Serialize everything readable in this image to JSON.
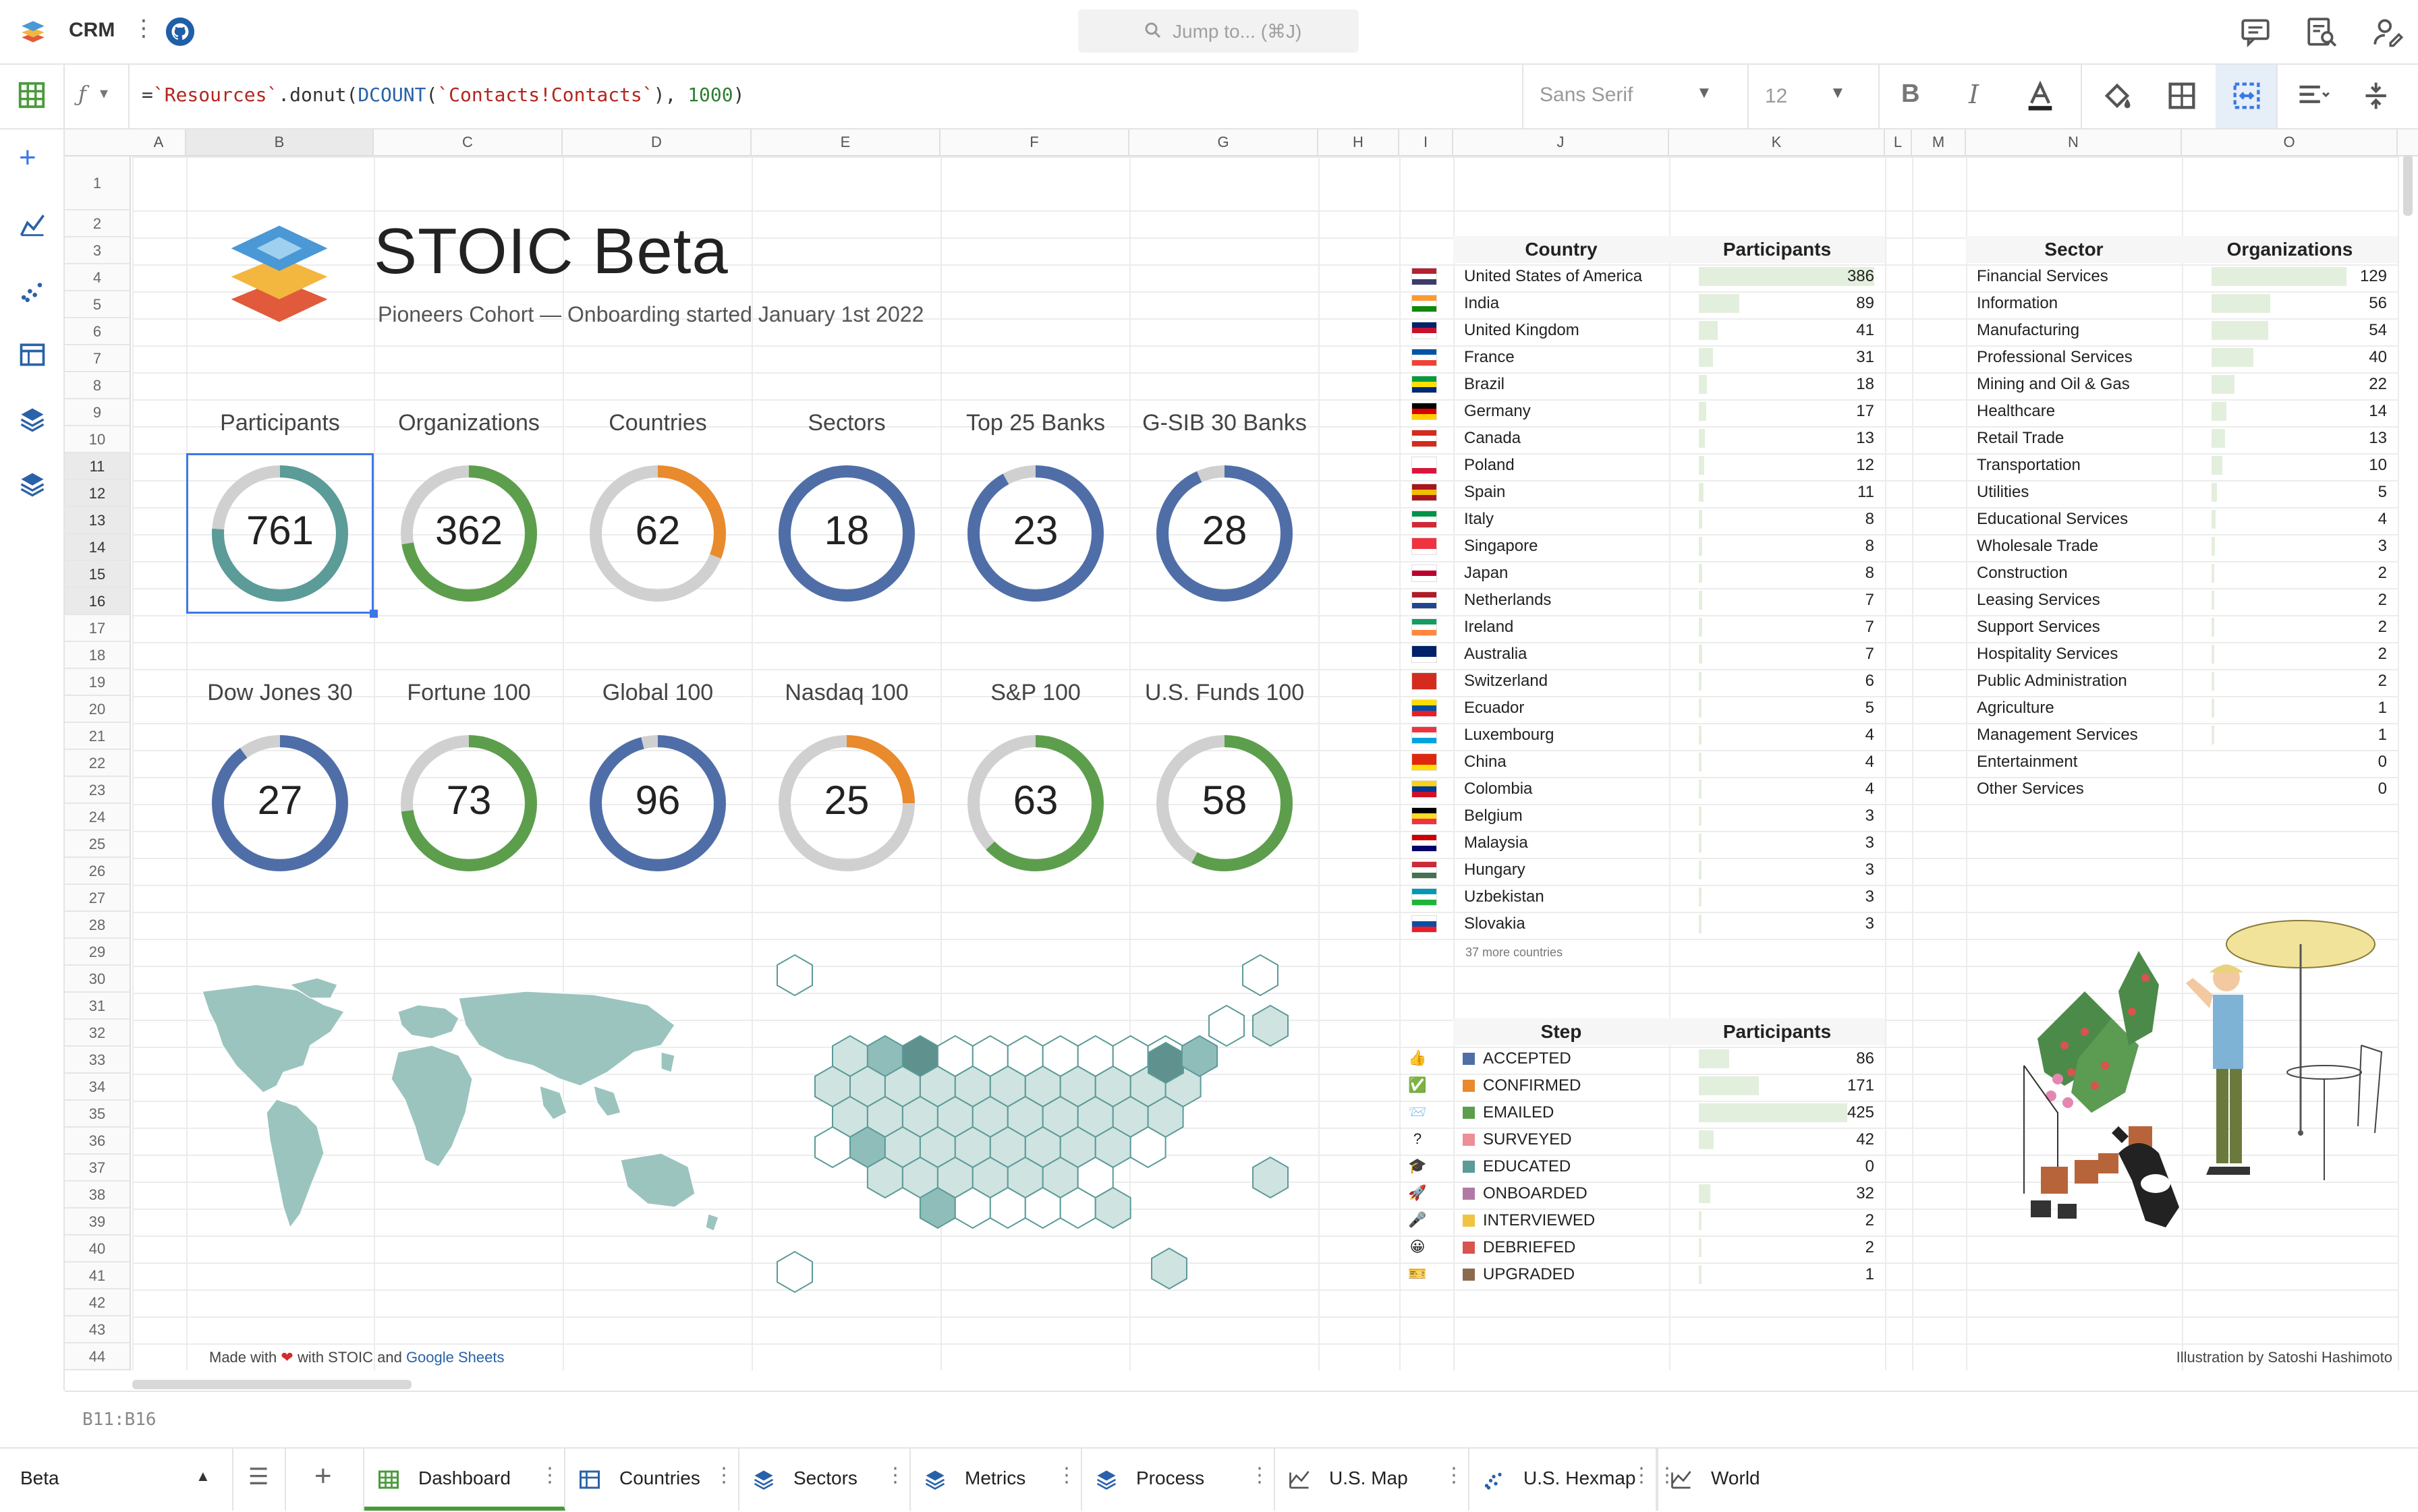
{
  "app": {
    "title": "CRM",
    "search_placeholder": "Jump to... (⌘J)",
    "formula": {
      "pre": "=",
      "s1": "`Resources`",
      "mid": ".donut(",
      "fn": "DCOUNT",
      "p": "(",
      "s2": "`Contacts!Contacts`",
      "c": "), ",
      "num": "1000",
      "end": ")"
    },
    "font_name": "Sans Serif",
    "font_size": "12"
  },
  "columns": [
    "A",
    "B",
    "C",
    "D",
    "E",
    "F",
    "G",
    "H",
    "I",
    "J",
    "K",
    "L",
    "M",
    "N",
    "O"
  ],
  "rows": [
    "1",
    "2",
    "3",
    "4",
    "5",
    "6",
    "7",
    "8",
    "9",
    "10",
    "11",
    "12",
    "13",
    "14",
    "15",
    "16",
    "17",
    "18",
    "19",
    "20",
    "21",
    "22",
    "23",
    "24",
    "25",
    "26",
    "27",
    "28",
    "29",
    "30",
    "31",
    "32",
    "33",
    "34",
    "35",
    "36",
    "37",
    "38",
    "39",
    "40",
    "41",
    "42",
    "43",
    "44"
  ],
  "dashboard": {
    "title": "STOIC Beta",
    "subtitle": "Pioneers Cohort — Onboarding started January 1st 2022",
    "tiles": [
      {
        "label": "Participants",
        "value": "761",
        "fraction": 0.761,
        "color": "#5b9b98"
      },
      {
        "label": "Organizations",
        "value": "362",
        "fraction": 0.724,
        "color": "#5c9e4c"
      },
      {
        "label": "Countries",
        "value": "62",
        "fraction": 0.31,
        "color": "#e98a2c"
      },
      {
        "label": "Sectors",
        "value": "18",
        "fraction": 1.0,
        "color": "#4f6ea8"
      },
      {
        "label": "Top 25 Banks",
        "value": "23",
        "fraction": 0.92,
        "color": "#4f6ea8"
      },
      {
        "label": "G-SIB 30 Banks",
        "value": "28",
        "fraction": 0.933,
        "color": "#4f6ea8"
      },
      {
        "label": "Dow Jones 30",
        "value": "27",
        "fraction": 0.9,
        "color": "#4f6ea8"
      },
      {
        "label": "Fortune 100",
        "value": "73",
        "fraction": 0.73,
        "color": "#5c9e4c"
      },
      {
        "label": "Global 100",
        "value": "96",
        "fraction": 0.96,
        "color": "#4f6ea8"
      },
      {
        "label": "Nasdaq 100",
        "value": "25",
        "fraction": 0.25,
        "color": "#e98a2c"
      },
      {
        "label": "S&P 100",
        "value": "63",
        "fraction": 0.63,
        "color": "#5c9e4c"
      },
      {
        "label": "U.S. Funds 100",
        "value": "58",
        "fraction": 0.58,
        "color": "#5c9e4c"
      }
    ],
    "made_with": {
      "pre": "Made with ",
      "heart": "❤",
      "mid": " with STOIC and ",
      "link": "Google Sheets"
    },
    "illustration_credit": "Illustration by Satoshi Hashimoto"
  },
  "countries_table": {
    "headers": [
      "Country",
      "Participants"
    ],
    "rows": [
      {
        "name": "United States of America",
        "value": "386",
        "n": 386
      },
      {
        "name": "India",
        "value": "89",
        "n": 89
      },
      {
        "name": "United Kingdom",
        "value": "41",
        "n": 41
      },
      {
        "name": "France",
        "value": "31",
        "n": 31
      },
      {
        "name": "Brazil",
        "value": "18",
        "n": 18
      },
      {
        "name": "Germany",
        "value": "17",
        "n": 17
      },
      {
        "name": "Canada",
        "value": "13",
        "n": 13
      },
      {
        "name": "Poland",
        "value": "12",
        "n": 12
      },
      {
        "name": "Spain",
        "value": "11",
        "n": 11
      },
      {
        "name": "Italy",
        "value": "8",
        "n": 8
      },
      {
        "name": "Singapore",
        "value": "8",
        "n": 8
      },
      {
        "name": "Japan",
        "value": "8",
        "n": 8
      },
      {
        "name": "Netherlands",
        "value": "7",
        "n": 7
      },
      {
        "name": "Ireland",
        "value": "7",
        "n": 7
      },
      {
        "name": "Australia",
        "value": "7",
        "n": 7
      },
      {
        "name": "Switzerland",
        "value": "6",
        "n": 6
      },
      {
        "name": "Ecuador",
        "value": "5",
        "n": 5
      },
      {
        "name": "Luxembourg",
        "value": "4",
        "n": 4
      },
      {
        "name": "China",
        "value": "4",
        "n": 4
      },
      {
        "name": "Colombia",
        "value": "4",
        "n": 4
      },
      {
        "name": "Belgium",
        "value": "3",
        "n": 3
      },
      {
        "name": "Malaysia",
        "value": "3",
        "n": 3
      },
      {
        "name": "Hungary",
        "value": "3",
        "n": 3
      },
      {
        "name": "Uzbekistan",
        "value": "3",
        "n": 3
      },
      {
        "name": "Slovakia",
        "value": "3",
        "n": 3
      }
    ],
    "more": "37 more countries"
  },
  "sectors_table": {
    "headers": [
      "Sector",
      "Organizations"
    ],
    "rows": [
      {
        "name": "Financial Services",
        "value": "129",
        "n": 129
      },
      {
        "name": "Information",
        "value": "56",
        "n": 56
      },
      {
        "name": "Manufacturing",
        "value": "54",
        "n": 54
      },
      {
        "name": "Professional Services",
        "value": "40",
        "n": 40
      },
      {
        "name": "Mining and Oil & Gas",
        "value": "22",
        "n": 22
      },
      {
        "name": "Healthcare",
        "value": "14",
        "n": 14
      },
      {
        "name": "Retail Trade",
        "value": "13",
        "n": 13
      },
      {
        "name": "Transportation",
        "value": "10",
        "n": 10
      },
      {
        "name": "Utilities",
        "value": "5",
        "n": 5
      },
      {
        "name": "Educational Services",
        "value": "4",
        "n": 4
      },
      {
        "name": "Wholesale Trade",
        "value": "3",
        "n": 3
      },
      {
        "name": "Construction",
        "value": "2",
        "n": 2
      },
      {
        "name": "Leasing Services",
        "value": "2",
        "n": 2
      },
      {
        "name": "Support Services",
        "value": "2",
        "n": 2
      },
      {
        "name": "Hospitality Services",
        "value": "2",
        "n": 2
      },
      {
        "name": "Public Administration",
        "value": "2",
        "n": 2
      },
      {
        "name": "Agriculture",
        "value": "1",
        "n": 1
      },
      {
        "name": "Management Services",
        "value": "1",
        "n": 1
      },
      {
        "name": "Entertainment",
        "value": "0",
        "n": 0
      },
      {
        "name": "Other Services",
        "value": "0",
        "n": 0
      }
    ]
  },
  "steps_table": {
    "headers": [
      "Step",
      "Participants"
    ],
    "rows": [
      {
        "icon": "👍",
        "name": "ACCEPTED",
        "value": "86",
        "n": 86,
        "color": "#4f6ea8"
      },
      {
        "icon": "✅",
        "name": "CONFIRMED",
        "value": "171",
        "n": 171,
        "color": "#e98a2c"
      },
      {
        "icon": "📨",
        "name": "EMAILED",
        "value": "425",
        "n": 425,
        "color": "#5c9e4c"
      },
      {
        "icon": "?",
        "name": "SURVEYED",
        "value": "42",
        "n": 42,
        "color": "#ec8f97"
      },
      {
        "icon": "🎓",
        "name": "EDUCATED",
        "value": "0",
        "n": 0,
        "color": "#5b9b98"
      },
      {
        "icon": "🚀",
        "name": "ONBOARDED",
        "value": "32",
        "n": 32,
        "color": "#b07aa6"
      },
      {
        "icon": "🎤",
        "name": "INTERVIEWED",
        "value": "2",
        "n": 2,
        "color": "#f1c342"
      },
      {
        "icon": "😀",
        "name": "DEBRIEFED",
        "value": "2",
        "n": 2,
        "color": "#d9534f"
      },
      {
        "icon": "🎫",
        "name": "UPGRADED",
        "value": "1",
        "n": 1,
        "color": "#8b6b4e"
      }
    ]
  },
  "selection_ref": "B11:B16",
  "tabs": [
    {
      "label": "Beta",
      "icon": "caret-up-icon"
    },
    {
      "label": "Dashboard",
      "icon": "grid-icon"
    },
    {
      "label": "Countries",
      "icon": "table-icon"
    },
    {
      "label": "Sectors",
      "icon": "layers-icon"
    },
    {
      "label": "Metrics",
      "icon": "layers-icon"
    },
    {
      "label": "Process",
      "icon": "layers-icon"
    },
    {
      "label": "U.S. Map",
      "icon": "line-chart-icon"
    },
    {
      "label": "U.S. Hexmap",
      "icon": "scatter-icon"
    },
    {
      "label": "World",
      "icon": "line-chart-icon"
    }
  ],
  "colors": {
    "accent": "#3b78e7",
    "active_tab": "#4a9a3c",
    "bar": "#e3efdd"
  }
}
